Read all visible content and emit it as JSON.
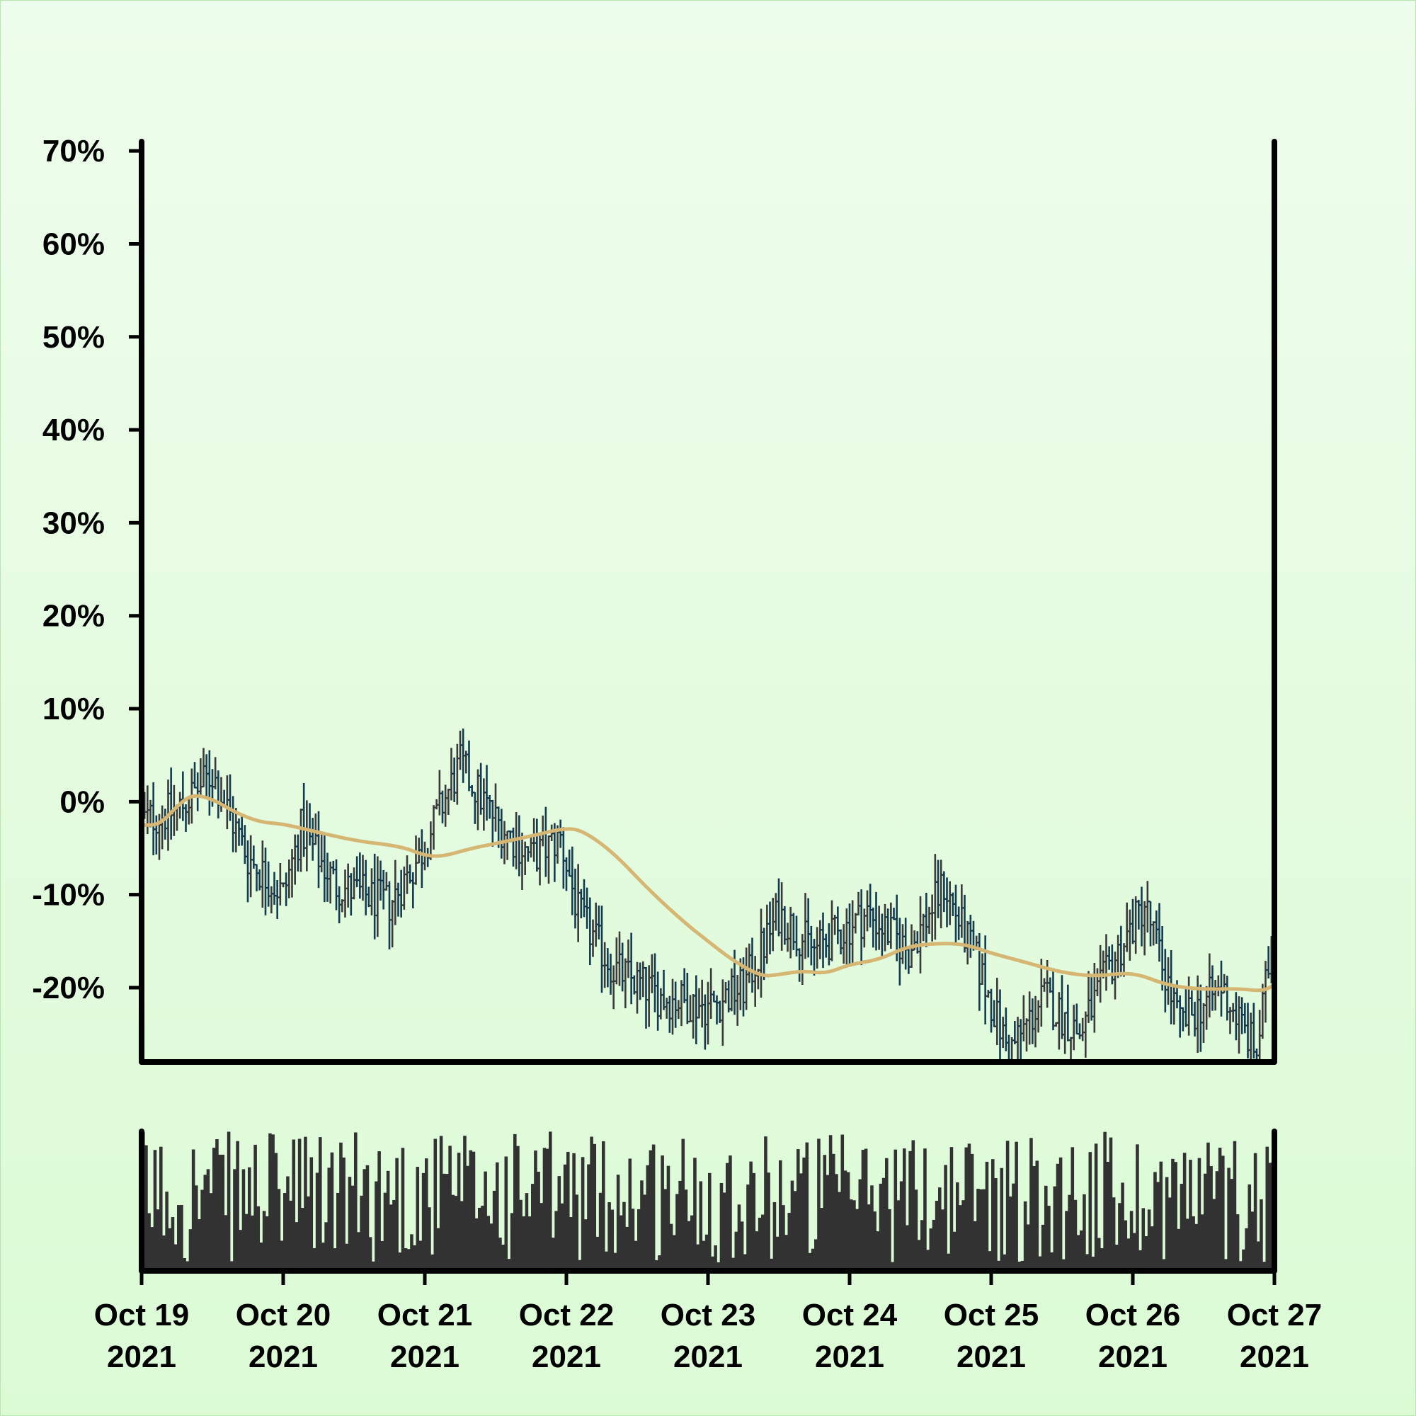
{
  "chart_data": {
    "type": "ohlc",
    "title": "",
    "xlabel": "",
    "ylabel": "",
    "ylim": [
      -28,
      71
    ],
    "xlim": [
      "2021-10-19T00:00",
      "2021-10-27T00:00"
    ],
    "y_ticks": [
      -20,
      -10,
      0,
      10,
      20,
      30,
      40,
      50,
      60,
      70
    ],
    "y_tick_labels": [
      "-20%",
      "-10%",
      "0%",
      "10%",
      "20%",
      "30%",
      "40%",
      "50%",
      "60%",
      "70%"
    ],
    "x_ticks": [
      "2021-10-19",
      "2021-10-20",
      "2021-10-21",
      "2021-10-22",
      "2021-10-23",
      "2021-10-24",
      "2021-10-25",
      "2021-10-26",
      "2021-10-27"
    ],
    "x_tick_labels": [
      [
        "Oct 19",
        "2021"
      ],
      [
        "Oct 20",
        "2021"
      ],
      [
        "Oct 21",
        "2021"
      ],
      [
        "Oct 22",
        "2021"
      ],
      [
        "Oct 23",
        "2021"
      ],
      [
        "Oct 24",
        "2021"
      ],
      [
        "Oct 25",
        "2021"
      ],
      [
        "Oct 26",
        "2021"
      ],
      [
        "Oct 27",
        "2021"
      ]
    ],
    "grid": false,
    "legend": "none",
    "series": [
      {
        "type": "ohlc",
        "color_up": "#3a3a3a",
        "color_down": "#123b52",
        "bar_interval_hours": 0.5,
        "anchors": [
          [
            "2021-10-19T00:00",
            -2
          ],
          [
            "2021-10-19T06:00",
            -1
          ],
          [
            "2021-10-19T12:00",
            3
          ],
          [
            "2021-10-19T18:00",
            -6
          ],
          [
            "2021-10-20T00:00",
            -10
          ],
          [
            "2021-10-20T03:00",
            -3
          ],
          [
            "2021-10-20T09:00",
            -9
          ],
          [
            "2021-10-20T18:00",
            -11
          ],
          [
            "2021-10-20T23:00",
            -6
          ],
          [
            "2021-10-21T06:00",
            4
          ],
          [
            "2021-10-21T12:00",
            -2
          ],
          [
            "2021-10-21T18:00",
            -6
          ],
          [
            "2021-10-21T23:00",
            -4
          ],
          [
            "2021-10-22T02:00",
            -12
          ],
          [
            "2021-10-22T08:00",
            -18
          ],
          [
            "2021-10-22T16:00",
            -21
          ],
          [
            "2021-10-23T00:00",
            -22
          ],
          [
            "2021-10-23T06:00",
            -20
          ],
          [
            "2021-10-23T12:00",
            -12
          ],
          [
            "2021-10-23T18:00",
            -16
          ],
          [
            "2021-10-24T03:00",
            -12
          ],
          [
            "2021-10-24T10:00",
            -16
          ],
          [
            "2021-10-24T16:00",
            -9
          ],
          [
            "2021-10-24T22:00",
            -18
          ],
          [
            "2021-10-25T03:00",
            -27
          ],
          [
            "2021-10-25T09:00",
            -21
          ],
          [
            "2021-10-25T15:00",
            -25
          ],
          [
            "2021-10-25T20:00",
            -18
          ],
          [
            "2021-10-26T02:00",
            -11
          ],
          [
            "2021-10-26T08:00",
            -24
          ],
          [
            "2021-10-26T15:00",
            -20
          ],
          [
            "2021-10-26T21:00",
            -27
          ],
          [
            "2021-10-27T00:00",
            -13
          ]
        ]
      },
      {
        "type": "line",
        "color": "#d5b673",
        "points": [
          [
            "2021-10-19T00:00",
            -2.5
          ],
          [
            "2021-10-19T03:00",
            -2.5
          ],
          [
            "2021-10-19T06:00",
            -0.5
          ],
          [
            "2021-10-19T08:30",
            0.8
          ],
          [
            "2021-10-19T12:00",
            0.3
          ],
          [
            "2021-10-19T16:00",
            -1.2
          ],
          [
            "2021-10-19T20:00",
            -2.2
          ],
          [
            "2021-10-20T00:00",
            -2.4
          ],
          [
            "2021-10-20T04:00",
            -3.0
          ],
          [
            "2021-10-20T12:00",
            -4.2
          ],
          [
            "2021-10-20T20:00",
            -4.8
          ],
          [
            "2021-10-21T00:00",
            -5.8
          ],
          [
            "2021-10-21T03:00",
            -5.9
          ],
          [
            "2021-10-21T08:00",
            -5.0
          ],
          [
            "2021-10-21T12:00",
            -4.5
          ],
          [
            "2021-10-21T18:00",
            -3.7
          ],
          [
            "2021-10-22T00:00",
            -2.8
          ],
          [
            "2021-10-22T03:00",
            -3.2
          ],
          [
            "2021-10-22T08:00",
            -5.5
          ],
          [
            "2021-10-22T14:00",
            -9.5
          ],
          [
            "2021-10-22T20:00",
            -13.0
          ],
          [
            "2021-10-23T00:00",
            -15.0
          ],
          [
            "2021-10-23T04:00",
            -17.0
          ],
          [
            "2021-10-23T09:00",
            -18.8
          ],
          [
            "2021-10-23T12:00",
            -18.6
          ],
          [
            "2021-10-23T16:00",
            -18.2
          ],
          [
            "2021-10-23T20:00",
            -18.5
          ],
          [
            "2021-10-24T00:00",
            -17.5
          ],
          [
            "2021-10-24T05:00",
            -17.0
          ],
          [
            "2021-10-24T10:00",
            -15.5
          ],
          [
            "2021-10-24T16:00",
            -15.2
          ],
          [
            "2021-10-24T20:00",
            -15.4
          ],
          [
            "2021-10-25T00:00",
            -16.3
          ],
          [
            "2021-10-25T06:00",
            -17.3
          ],
          [
            "2021-10-25T12:00",
            -18.4
          ],
          [
            "2021-10-25T18:00",
            -18.8
          ],
          [
            "2021-10-26T00:00",
            -18.3
          ],
          [
            "2021-10-26T06:00",
            -19.8
          ],
          [
            "2021-10-26T12:00",
            -20.2
          ],
          [
            "2021-10-26T18:00",
            -20.1
          ],
          [
            "2021-10-26T22:00",
            -20.4
          ],
          [
            "2021-10-27T00:00",
            -19.7
          ]
        ]
      },
      {
        "type": "bar",
        "name": "",
        "color": "#323232",
        "panel": "lower",
        "relative_scale": [
          0,
          1
        ]
      }
    ]
  }
}
